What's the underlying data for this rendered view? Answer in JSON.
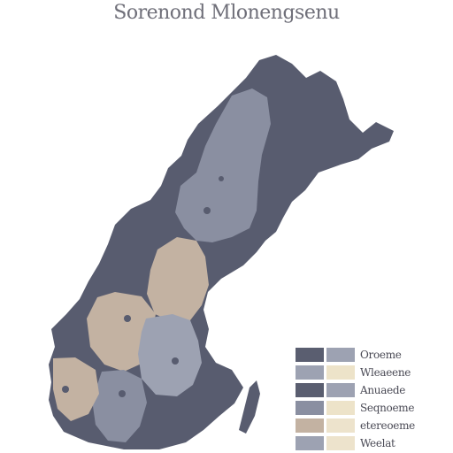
{
  "title": "Sorenond Mlonengsenu",
  "colors": {
    "dark": "#585c6f",
    "mid": "#8a8fa1",
    "light_mid": "#9da2b2",
    "tan": "#c3b2a2",
    "cream": "#ede3c9",
    "pale_tan": "#ede3cc"
  },
  "legend": {
    "rows": [
      {
        "label": "Oroeme",
        "swatches": [
          "#5a5e70",
          "#9da2b2"
        ]
      },
      {
        "label": "Wleaeene",
        "swatches": [
          "#9da2b2",
          "#ede3c9"
        ]
      },
      {
        "label": "Anuaede",
        "swatches": [
          "#5a5e70",
          "#9da2b2"
        ]
      },
      {
        "label": "Seqnoeme",
        "swatches": [
          "#8a8fa1",
          "#ede3c9"
        ]
      },
      {
        "label": "etereoeme",
        "swatches": [
          "#c3b2a2",
          "#ede3cc"
        ]
      },
      {
        "label": "Weelat",
        "swatches": [
          "#9da2b2",
          "#ede3cc"
        ]
      }
    ]
  }
}
